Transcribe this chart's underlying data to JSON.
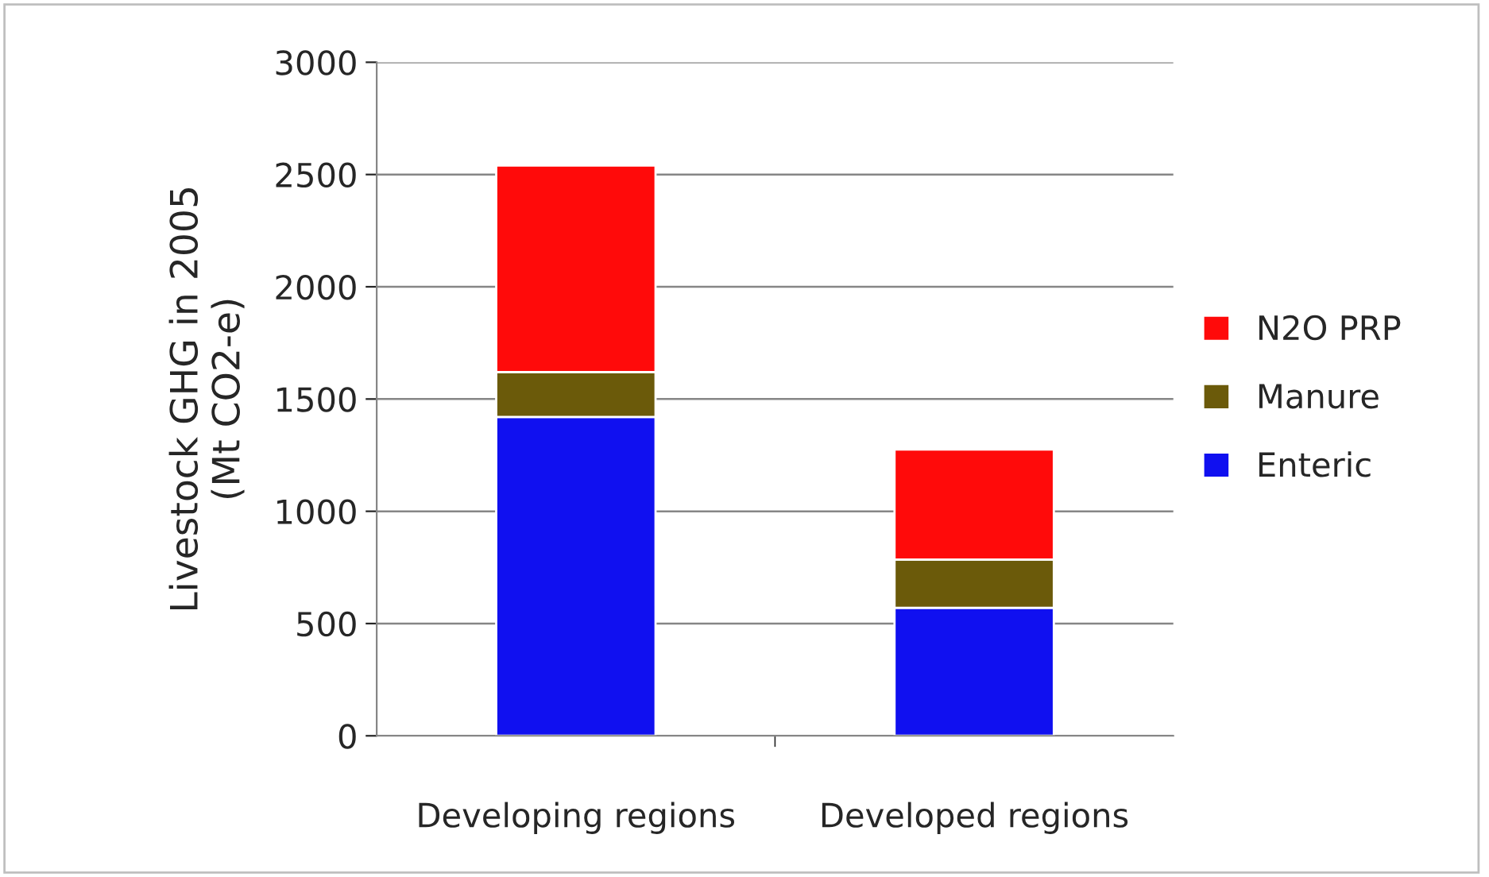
{
  "chart_data": {
    "type": "bar",
    "stacked": true,
    "ylabel": "Livestock GHG in 2005\n(Mt CO2-e)",
    "categories": [
      "Developing regions",
      "Developed regions"
    ],
    "series": [
      {
        "name": "Enteric",
        "color": "#1010f0",
        "values": [
          1420,
          570
        ]
      },
      {
        "name": "Manure",
        "color": "#6b5a0a",
        "values": [
          200,
          215
        ]
      },
      {
        "name": "N2O PRP",
        "color": "#ff0a0a",
        "values": [
          920,
          490
        ]
      }
    ],
    "ylim": [
      0,
      3000
    ],
    "yticks": [
      0,
      500,
      1000,
      1500,
      2000,
      2500,
      3000
    ],
    "grid": "y",
    "legend": "right"
  }
}
